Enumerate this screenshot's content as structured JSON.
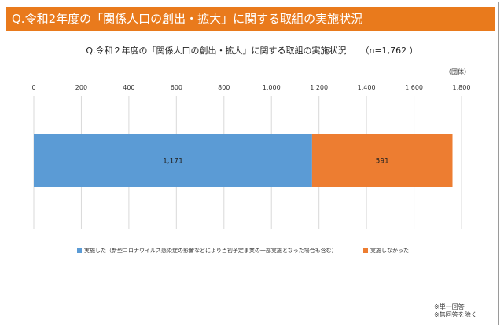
{
  "header": {
    "title": "Q.令和2年度の「関係人口の創出・拡大」に関する取組の実施状況"
  },
  "chart_data": {
    "type": "bar",
    "orientation": "horizontal-stacked",
    "title": "Q.令和２年度の「関係人口の創出・拡大」に関する取組の実施状況",
    "subtitle": "（n=1,762 ）",
    "unit_label": "（団体）",
    "xlim": [
      0,
      1800
    ],
    "xticks": [
      0,
      200,
      400,
      600,
      800,
      1000,
      1200,
      1400,
      1600,
      1800
    ],
    "xtick_labels": [
      "0",
      "200",
      "400",
      "600",
      "800",
      "1,000",
      "1,200",
      "1,400",
      "1,600",
      "1,800"
    ],
    "grid": true,
    "legend_position": "bottom",
    "series": [
      {
        "name": "実施した（新型コロナウイルス感染症の影響などにより当初予定事業の一部実施となった場合も含む）",
        "values": [
          1171
        ],
        "label": "1,171",
        "color": "#5b9bd5"
      },
      {
        "name": "実施しなかった",
        "values": [
          591
        ],
        "label": "591",
        "color": "#ed7d31"
      }
    ]
  },
  "notes": [
    "※単一回答",
    "※無回答を除く"
  ]
}
